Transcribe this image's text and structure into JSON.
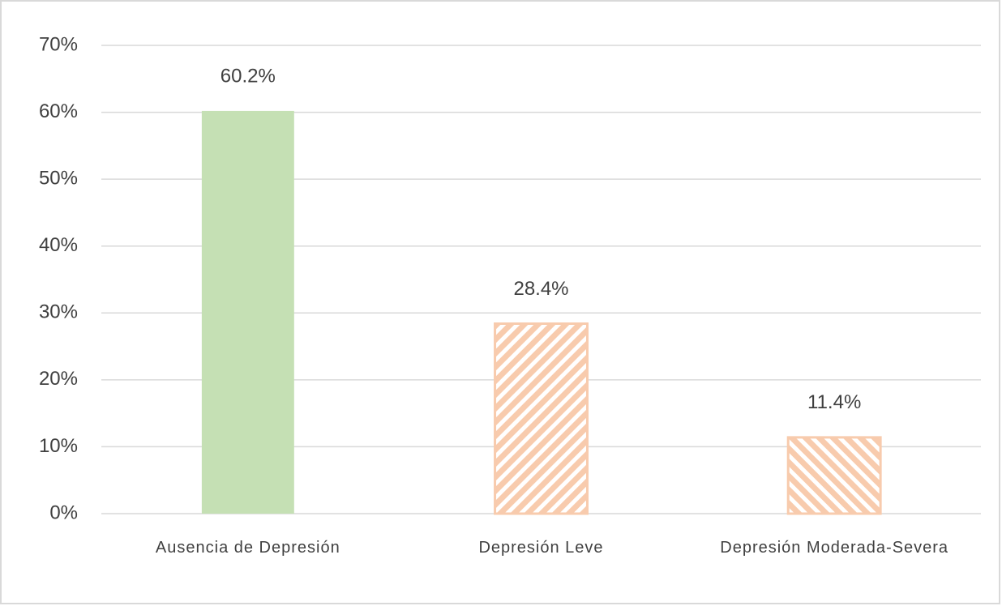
{
  "chart_data": {
    "type": "bar",
    "categories": [
      "Ausencia de Depresión",
      "Depresión Leve",
      "Depresión Moderada-Severa"
    ],
    "values": [
      60.2,
      28.4,
      11.4
    ],
    "value_labels": [
      "60.2%",
      "28.4%",
      "11.4%"
    ],
    "colors": [
      "#c5e0b4",
      "#f8cbad",
      "#f8cbad"
    ],
    "hatch": [
      "none",
      "backslash",
      "slash"
    ],
    "ylim": [
      0,
      70
    ],
    "yticks": [
      {
        "value": 0,
        "label": "0%"
      },
      {
        "value": 10,
        "label": "10%"
      },
      {
        "value": 20,
        "label": "20%"
      },
      {
        "value": 30,
        "label": "30%"
      },
      {
        "value": 40,
        "label": "40%"
      },
      {
        "value": 50,
        "label": "50%"
      },
      {
        "value": 60,
        "label": "60%"
      },
      {
        "value": 70,
        "label": "70%"
      }
    ],
    "grid": true
  }
}
